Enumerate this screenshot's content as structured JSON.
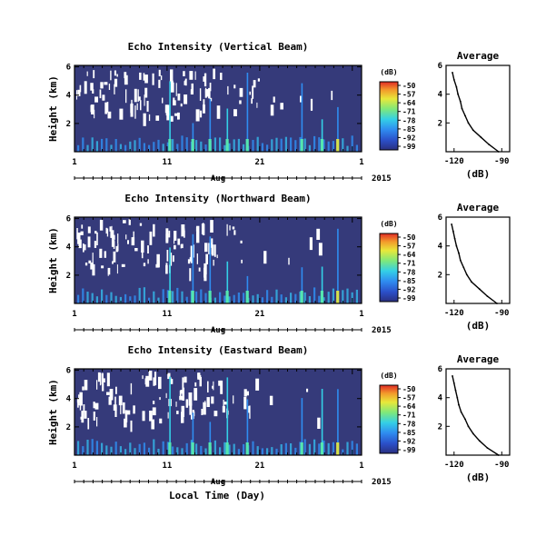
{
  "figure": {
    "xlabel": "Local Time (Day)",
    "month": "Aug",
    "year": "2015"
  },
  "chart_data": [
    {
      "type": "heatmap",
      "title": "Echo Intensity (Vertical Beam)",
      "xlabel": "Local Time (Day)",
      "ylabel": "Height (km)",
      "x_ticks": [
        "1",
        "11",
        "21",
        "1"
      ],
      "y_ticks": [
        "6",
        "4",
        "2"
      ],
      "xlim_day": [
        1,
        32
      ],
      "ylim_km": [
        0,
        6.1
      ],
      "colorbar": {
        "unit": "(dB)",
        "ticks": [
          "-50",
          "-57",
          "-64",
          "-71",
          "-78",
          "-85",
          "-92",
          "-99"
        ],
        "range": [
          -99,
          -50
        ]
      }
    },
    {
      "type": "line",
      "title": "Average",
      "xlabel": "(dB)",
      "x_ticks": [
        "-120",
        "-90"
      ],
      "y_ticks": [
        "6",
        "4",
        "2"
      ],
      "xlim": [
        -125,
        -85
      ],
      "ylim": [
        0,
        6
      ],
      "y": [
        0,
        0.5,
        1,
        1.5,
        2,
        2.5,
        3,
        3.5,
        4,
        4.5,
        5,
        5.5
      ],
      "x": [
        -92,
        -98,
        -103,
        -108,
        -111,
        -113,
        -115,
        -116,
        -117.5,
        -118.5,
        -120,
        -121
      ]
    },
    {
      "type": "heatmap",
      "title": "Echo Intensity (Northward Beam)",
      "xlabel": "Local Time (Day)",
      "ylabel": "Height (km)",
      "x_ticks": [
        "1",
        "11",
        "21",
        "1"
      ],
      "y_ticks": [
        "6",
        "4",
        "2"
      ],
      "xlim_day": [
        1,
        32
      ],
      "ylim_km": [
        0,
        6.1
      ],
      "colorbar": {
        "unit": "(dB)",
        "ticks": [
          "-50",
          "-57",
          "-64",
          "-71",
          "-78",
          "-85",
          "-92",
          "-99"
        ],
        "range": [
          -99,
          -50
        ]
      }
    },
    {
      "type": "line",
      "title": "Average",
      "xlabel": "(dB)",
      "x_ticks": [
        "-120",
        "-90"
      ],
      "y_ticks": [
        "6",
        "4",
        "2"
      ],
      "xlim": [
        -125,
        -85
      ],
      "ylim": [
        0,
        6
      ],
      "y": [
        0,
        0.5,
        1,
        1.5,
        2,
        2.5,
        3,
        3.5,
        4,
        4.5,
        5,
        5.5
      ],
      "x": [
        -93,
        -99,
        -104,
        -109,
        -112,
        -114,
        -116,
        -117,
        -118.5,
        -119.5,
        -120.5,
        -121.5
      ]
    },
    {
      "type": "heatmap",
      "title": "Echo Intensity (Eastward Beam)",
      "xlabel": "Local Time (Day)",
      "ylabel": "Height (km)",
      "x_ticks": [
        "1",
        "11",
        "21",
        "1"
      ],
      "y_ticks": [
        "6",
        "4",
        "2"
      ],
      "xlim_day": [
        1,
        32
      ],
      "ylim_km": [
        0,
        6.1
      ],
      "colorbar": {
        "unit": "(dB)",
        "ticks": [
          "-50",
          "-57",
          "-64",
          "-71",
          "-78",
          "-85",
          "-92",
          "-99"
        ],
        "range": [
          -99,
          -50
        ]
      }
    },
    {
      "type": "line",
      "title": "Average",
      "xlabel": "(dB)",
      "x_ticks": [
        "-120",
        "-90"
      ],
      "y_ticks": [
        "6",
        "4",
        "2"
      ],
      "xlim": [
        -125,
        -85
      ],
      "ylim": [
        0,
        6
      ],
      "y": [
        0,
        0.5,
        1,
        1.5,
        2,
        2.5,
        3,
        3.5,
        4,
        4.5,
        5,
        5.5
      ],
      "x": [
        -92,
        -99,
        -104,
        -108,
        -111,
        -113,
        -115.5,
        -117,
        -118,
        -119,
        -120,
        -121
      ]
    }
  ]
}
